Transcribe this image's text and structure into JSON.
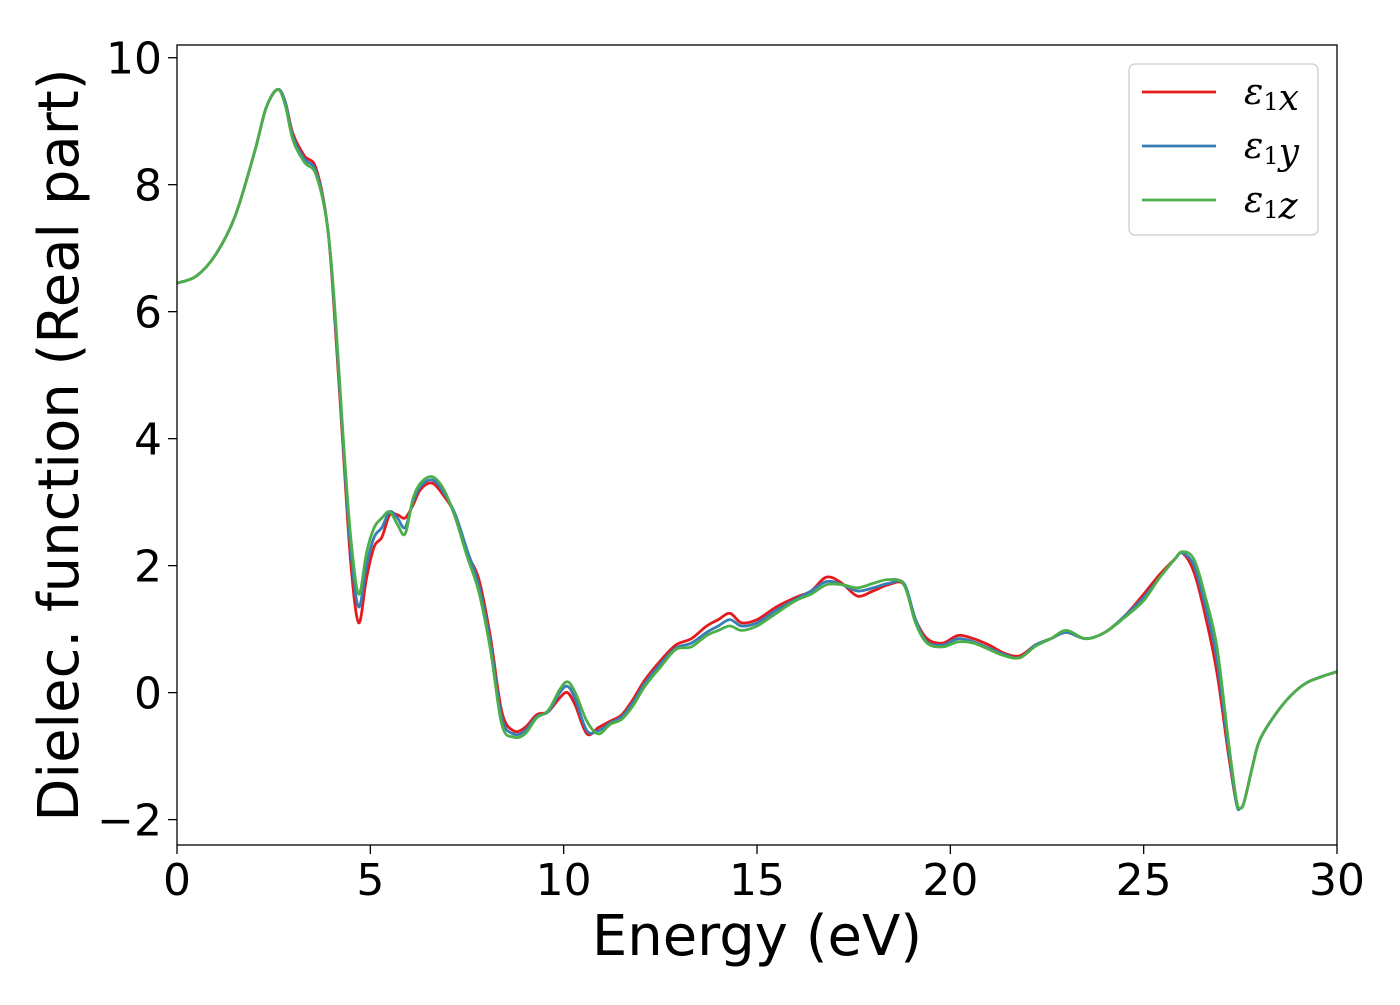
{
  "chart_data": {
    "type": "line",
    "xlabel": "Energy (eV)",
    "ylabel": "Dielec. function (Real part)",
    "xlim": [
      0,
      30
    ],
    "ylim": [
      -2.4,
      10.2
    ],
    "xticks": [
      0,
      5,
      10,
      15,
      20,
      25,
      30
    ],
    "xtick_labels": [
      "0",
      "5",
      "10",
      "15",
      "20",
      "25",
      "30"
    ],
    "yticks": [
      -2,
      0,
      2,
      4,
      6,
      8,
      10
    ],
    "ytick_labels": [
      "−2",
      "0",
      "2",
      "4",
      "6",
      "8",
      "10"
    ],
    "grid": false,
    "legend_position": "top-right",
    "x": [
      0.0,
      0.5,
      1.0,
      1.5,
      2.0,
      2.3,
      2.6,
      2.8,
      3.0,
      3.3,
      3.6,
      3.9,
      4.1,
      4.3,
      4.5,
      4.7,
      4.9,
      5.1,
      5.3,
      5.5,
      5.7,
      5.9,
      6.1,
      6.3,
      6.6,
      6.9,
      7.2,
      7.5,
      7.8,
      8.1,
      8.4,
      8.7,
      9.0,
      9.3,
      9.6,
      9.9,
      10.1,
      10.3,
      10.6,
      10.9,
      11.2,
      11.5,
      11.8,
      12.1,
      12.5,
      12.9,
      13.3,
      13.7,
      14.0,
      14.3,
      14.6,
      15.0,
      15.5,
      16.0,
      16.4,
      16.8,
      17.2,
      17.6,
      18.0,
      18.4,
      18.8,
      19.1,
      19.4,
      19.8,
      20.2,
      20.6,
      21.0,
      21.4,
      21.8,
      22.2,
      22.6,
      23.0,
      23.5,
      24.0,
      24.5,
      25.0,
      25.4,
      25.8,
      26.0,
      26.3,
      26.6,
      26.9,
      27.2,
      27.4,
      27.5,
      27.6,
      27.8,
      28.0,
      28.4,
      28.8,
      29.2,
      29.6,
      30.0
    ],
    "series": [
      {
        "name": "ε₁x",
        "color": "#e41a1c",
        "values": [
          6.45,
          6.56,
          6.9,
          7.5,
          8.5,
          9.2,
          9.5,
          9.3,
          8.8,
          8.45,
          8.25,
          7.3,
          5.7,
          3.8,
          2.0,
          1.1,
          1.8,
          2.3,
          2.45,
          2.8,
          2.8,
          2.75,
          2.95,
          3.2,
          3.3,
          3.1,
          2.8,
          2.2,
          1.8,
          0.9,
          -0.3,
          -0.6,
          -0.55,
          -0.35,
          -0.3,
          -0.08,
          0.0,
          -0.2,
          -0.65,
          -0.55,
          -0.45,
          -0.35,
          -0.1,
          0.2,
          0.5,
          0.75,
          0.85,
          1.05,
          1.15,
          1.25,
          1.1,
          1.15,
          1.35,
          1.5,
          1.6,
          1.82,
          1.72,
          1.52,
          1.6,
          1.7,
          1.7,
          1.15,
          0.85,
          0.78,
          0.9,
          0.85,
          0.75,
          0.62,
          0.58,
          0.75,
          0.85,
          0.95,
          0.85,
          0.95,
          1.2,
          1.55,
          1.85,
          2.1,
          2.2,
          1.9,
          1.2,
          0.3,
          -1.0,
          -1.75,
          -1.82,
          -1.72,
          -1.2,
          -0.75,
          -0.35,
          -0.05,
          0.15,
          0.25,
          0.33
        ]
      },
      {
        "name": "ε₁y",
        "color": "#377eb8",
        "values": [
          6.45,
          6.56,
          6.9,
          7.5,
          8.5,
          9.2,
          9.5,
          9.3,
          8.75,
          8.4,
          8.2,
          7.3,
          5.8,
          3.9,
          2.2,
          1.35,
          2.0,
          2.45,
          2.6,
          2.85,
          2.75,
          2.6,
          3.0,
          3.25,
          3.35,
          3.15,
          2.8,
          2.25,
          1.7,
          0.8,
          -0.4,
          -0.65,
          -0.6,
          -0.38,
          -0.3,
          0.0,
          0.1,
          -0.1,
          -0.6,
          -0.6,
          -0.48,
          -0.38,
          -0.15,
          0.15,
          0.45,
          0.7,
          0.78,
          0.95,
          1.05,
          1.15,
          1.05,
          1.1,
          1.3,
          1.47,
          1.6,
          1.75,
          1.7,
          1.6,
          1.65,
          1.72,
          1.72,
          1.15,
          0.8,
          0.75,
          0.85,
          0.8,
          0.7,
          0.6,
          0.55,
          0.75,
          0.85,
          0.95,
          0.85,
          0.95,
          1.2,
          1.5,
          1.8,
          2.1,
          2.2,
          2.0,
          1.35,
          0.5,
          -0.9,
          -1.75,
          -1.82,
          -1.72,
          -1.2,
          -0.75,
          -0.35,
          -0.05,
          0.15,
          0.25,
          0.33
        ]
      },
      {
        "name": "ε₁z",
        "color": "#4daf4a",
        "values": [
          6.45,
          6.56,
          6.9,
          7.5,
          8.5,
          9.2,
          9.5,
          9.25,
          8.7,
          8.35,
          8.15,
          7.3,
          5.9,
          4.0,
          2.4,
          1.55,
          2.2,
          2.6,
          2.75,
          2.85,
          2.65,
          2.5,
          3.05,
          3.3,
          3.4,
          3.2,
          2.75,
          2.15,
          1.6,
          0.7,
          -0.5,
          -0.7,
          -0.65,
          -0.4,
          -0.28,
          0.05,
          0.17,
          0.0,
          -0.45,
          -0.65,
          -0.5,
          -0.42,
          -0.2,
          0.1,
          0.4,
          0.68,
          0.72,
          0.9,
          0.98,
          1.05,
          0.98,
          1.05,
          1.25,
          1.45,
          1.55,
          1.7,
          1.7,
          1.65,
          1.72,
          1.78,
          1.7,
          1.1,
          0.78,
          0.72,
          0.8,
          0.78,
          0.68,
          0.58,
          0.55,
          0.73,
          0.85,
          0.98,
          0.85,
          0.95,
          1.18,
          1.45,
          1.8,
          2.1,
          2.22,
          2.1,
          1.5,
          0.7,
          -0.8,
          -1.7,
          -1.82,
          -1.72,
          -1.2,
          -0.75,
          -0.35,
          -0.05,
          0.15,
          0.25,
          0.33
        ]
      }
    ]
  }
}
